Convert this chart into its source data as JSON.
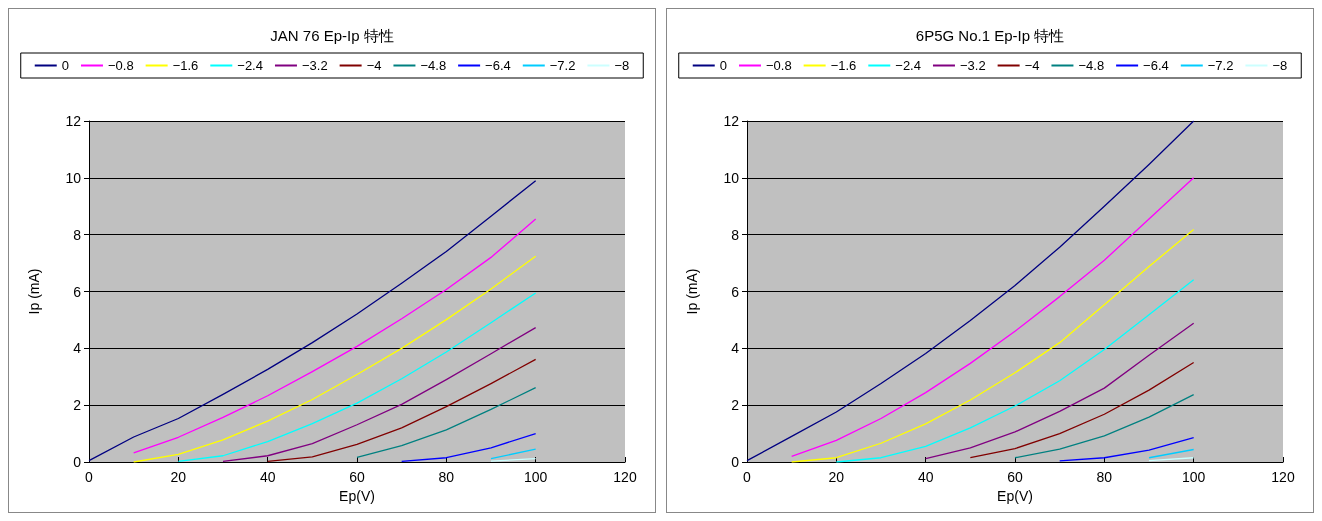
{
  "chart_data": [
    {
      "type": "line",
      "title": "JAN 76 Ep-Ip 特性",
      "xlabel": "Ep(V)",
      "ylabel": "Ip (mA)",
      "xlim": [
        0,
        120
      ],
      "xticks": [
        0,
        20,
        40,
        60,
        80,
        100,
        120
      ],
      "ylim": [
        0,
        12
      ],
      "yticks": [
        0,
        2,
        4,
        6,
        8,
        10,
        12
      ],
      "grid": "y",
      "legend": "top",
      "marker": "none",
      "line_style": "solid",
      "x": [
        0,
        10,
        20,
        30,
        40,
        50,
        60,
        70,
        80,
        90,
        100
      ],
      "series": [
        {
          "name": "0",
          "color": "#000080",
          "values": [
            0.05,
            0.88,
            1.53,
            2.38,
            3.26,
            4.2,
            5.21,
            6.29,
            7.41,
            8.65,
            9.9
          ]
        },
        {
          "name": "−0.8",
          "color": "#ff00ff",
          "values": [
            null,
            0.32,
            0.87,
            1.57,
            2.33,
            3.18,
            4.07,
            5.04,
            6.07,
            7.2,
            8.55
          ]
        },
        {
          "name": "−1.6",
          "color": "#ffff00",
          "values": [
            null,
            0,
            0.27,
            0.78,
            1.44,
            2.2,
            3.08,
            4.0,
            5.01,
            6.09,
            7.24
          ]
        },
        {
          "name": "−2.4",
          "color": "#00ffff",
          "values": [
            null,
            null,
            0.02,
            0.22,
            0.72,
            1.35,
            2.07,
            2.93,
            3.87,
            4.9,
            5.95
          ]
        },
        {
          "name": "−3.2",
          "color": "#800080",
          "values": [
            null,
            null,
            null,
            0.02,
            0.22,
            0.65,
            1.31,
            2.03,
            2.9,
            3.81,
            4.73
          ]
        },
        {
          "name": "−4",
          "color": "#800000",
          "values": [
            null,
            null,
            null,
            null,
            0.02,
            0.18,
            0.62,
            1.2,
            1.95,
            2.76,
            3.61
          ]
        },
        {
          "name": "−4.8",
          "color": "#008080",
          "values": [
            null,
            null,
            null,
            null,
            null,
            null,
            0.16,
            0.58,
            1.13,
            1.85,
            2.62
          ]
        },
        {
          "name": "−6.4",
          "color": "#0000ff",
          "values": [
            null,
            null,
            null,
            null,
            null,
            null,
            null,
            0.02,
            0.15,
            0.5,
            1.0
          ]
        },
        {
          "name": "−7.2",
          "color": "#00ccff",
          "values": [
            null,
            null,
            null,
            null,
            null,
            null,
            null,
            null,
            null,
            0.12,
            0.45
          ]
        },
        {
          "name": "−8",
          "color": "#ccffff",
          "values": [
            null,
            null,
            null,
            null,
            null,
            null,
            null,
            null,
            null,
            0.03,
            0.12
          ]
        }
      ]
    },
    {
      "type": "line",
      "title": "6P5G No.1 Ep-Ip 特性",
      "xlabel": "Ep(V)",
      "ylabel": "Ip (mA)",
      "xlim": [
        0,
        120
      ],
      "xticks": [
        0,
        20,
        40,
        60,
        80,
        100,
        120
      ],
      "ylim": [
        0,
        12
      ],
      "yticks": [
        0,
        2,
        4,
        6,
        8,
        10,
        12
      ],
      "grid": "y",
      "legend": "top",
      "marker": "none",
      "line_style": "solid",
      "x": [
        0,
        10,
        20,
        30,
        40,
        50,
        60,
        70,
        80,
        90,
        100
      ],
      "series": [
        {
          "name": "0",
          "color": "#000080",
          "values": [
            0.05,
            0.9,
            1.76,
            2.76,
            3.82,
            4.98,
            6.21,
            7.56,
            9.0,
            10.47,
            12
          ]
        },
        {
          "name": "−0.8",
          "color": "#ff00ff",
          "values": [
            null,
            0.2,
            0.76,
            1.53,
            2.44,
            3.47,
            4.6,
            5.82,
            7.1,
            8.55,
            10.0
          ]
        },
        {
          "name": "−1.6",
          "color": "#ffff00",
          "values": [
            null,
            0,
            0.15,
            0.66,
            1.34,
            2.18,
            3.14,
            4.2,
            5.53,
            6.88,
            8.18
          ]
        },
        {
          "name": "−2.4",
          "color": "#00ffff",
          "values": [
            null,
            null,
            0,
            0.15,
            0.55,
            1.2,
            1.97,
            2.86,
            3.96,
            5.18,
            6.41
          ]
        },
        {
          "name": "−3.2",
          "color": "#800080",
          "values": [
            null,
            null,
            null,
            null,
            0.12,
            0.5,
            1.06,
            1.78,
            2.6,
            3.76,
            4.88
          ]
        },
        {
          "name": "−4",
          "color": "#800000",
          "values": [
            null,
            null,
            null,
            null,
            null,
            0.15,
            0.47,
            1.0,
            1.68,
            2.53,
            3.5
          ]
        },
        {
          "name": "−4.8",
          "color": "#008080",
          "values": [
            null,
            null,
            null,
            null,
            null,
            null,
            0.15,
            0.45,
            0.92,
            1.58,
            2.37
          ]
        },
        {
          "name": "−6.4",
          "color": "#0000ff",
          "values": [
            null,
            null,
            null,
            null,
            null,
            null,
            null,
            0.04,
            0.15,
            0.42,
            0.86
          ]
        },
        {
          "name": "−7.2",
          "color": "#00ccff",
          "values": [
            null,
            null,
            null,
            null,
            null,
            null,
            null,
            null,
            null,
            0.15,
            0.44
          ]
        },
        {
          "name": "−8",
          "color": "#ccffff",
          "values": [
            null,
            null,
            null,
            null,
            null,
            null,
            null,
            null,
            null,
            0.05,
            0.15
          ]
        }
      ]
    }
  ]
}
